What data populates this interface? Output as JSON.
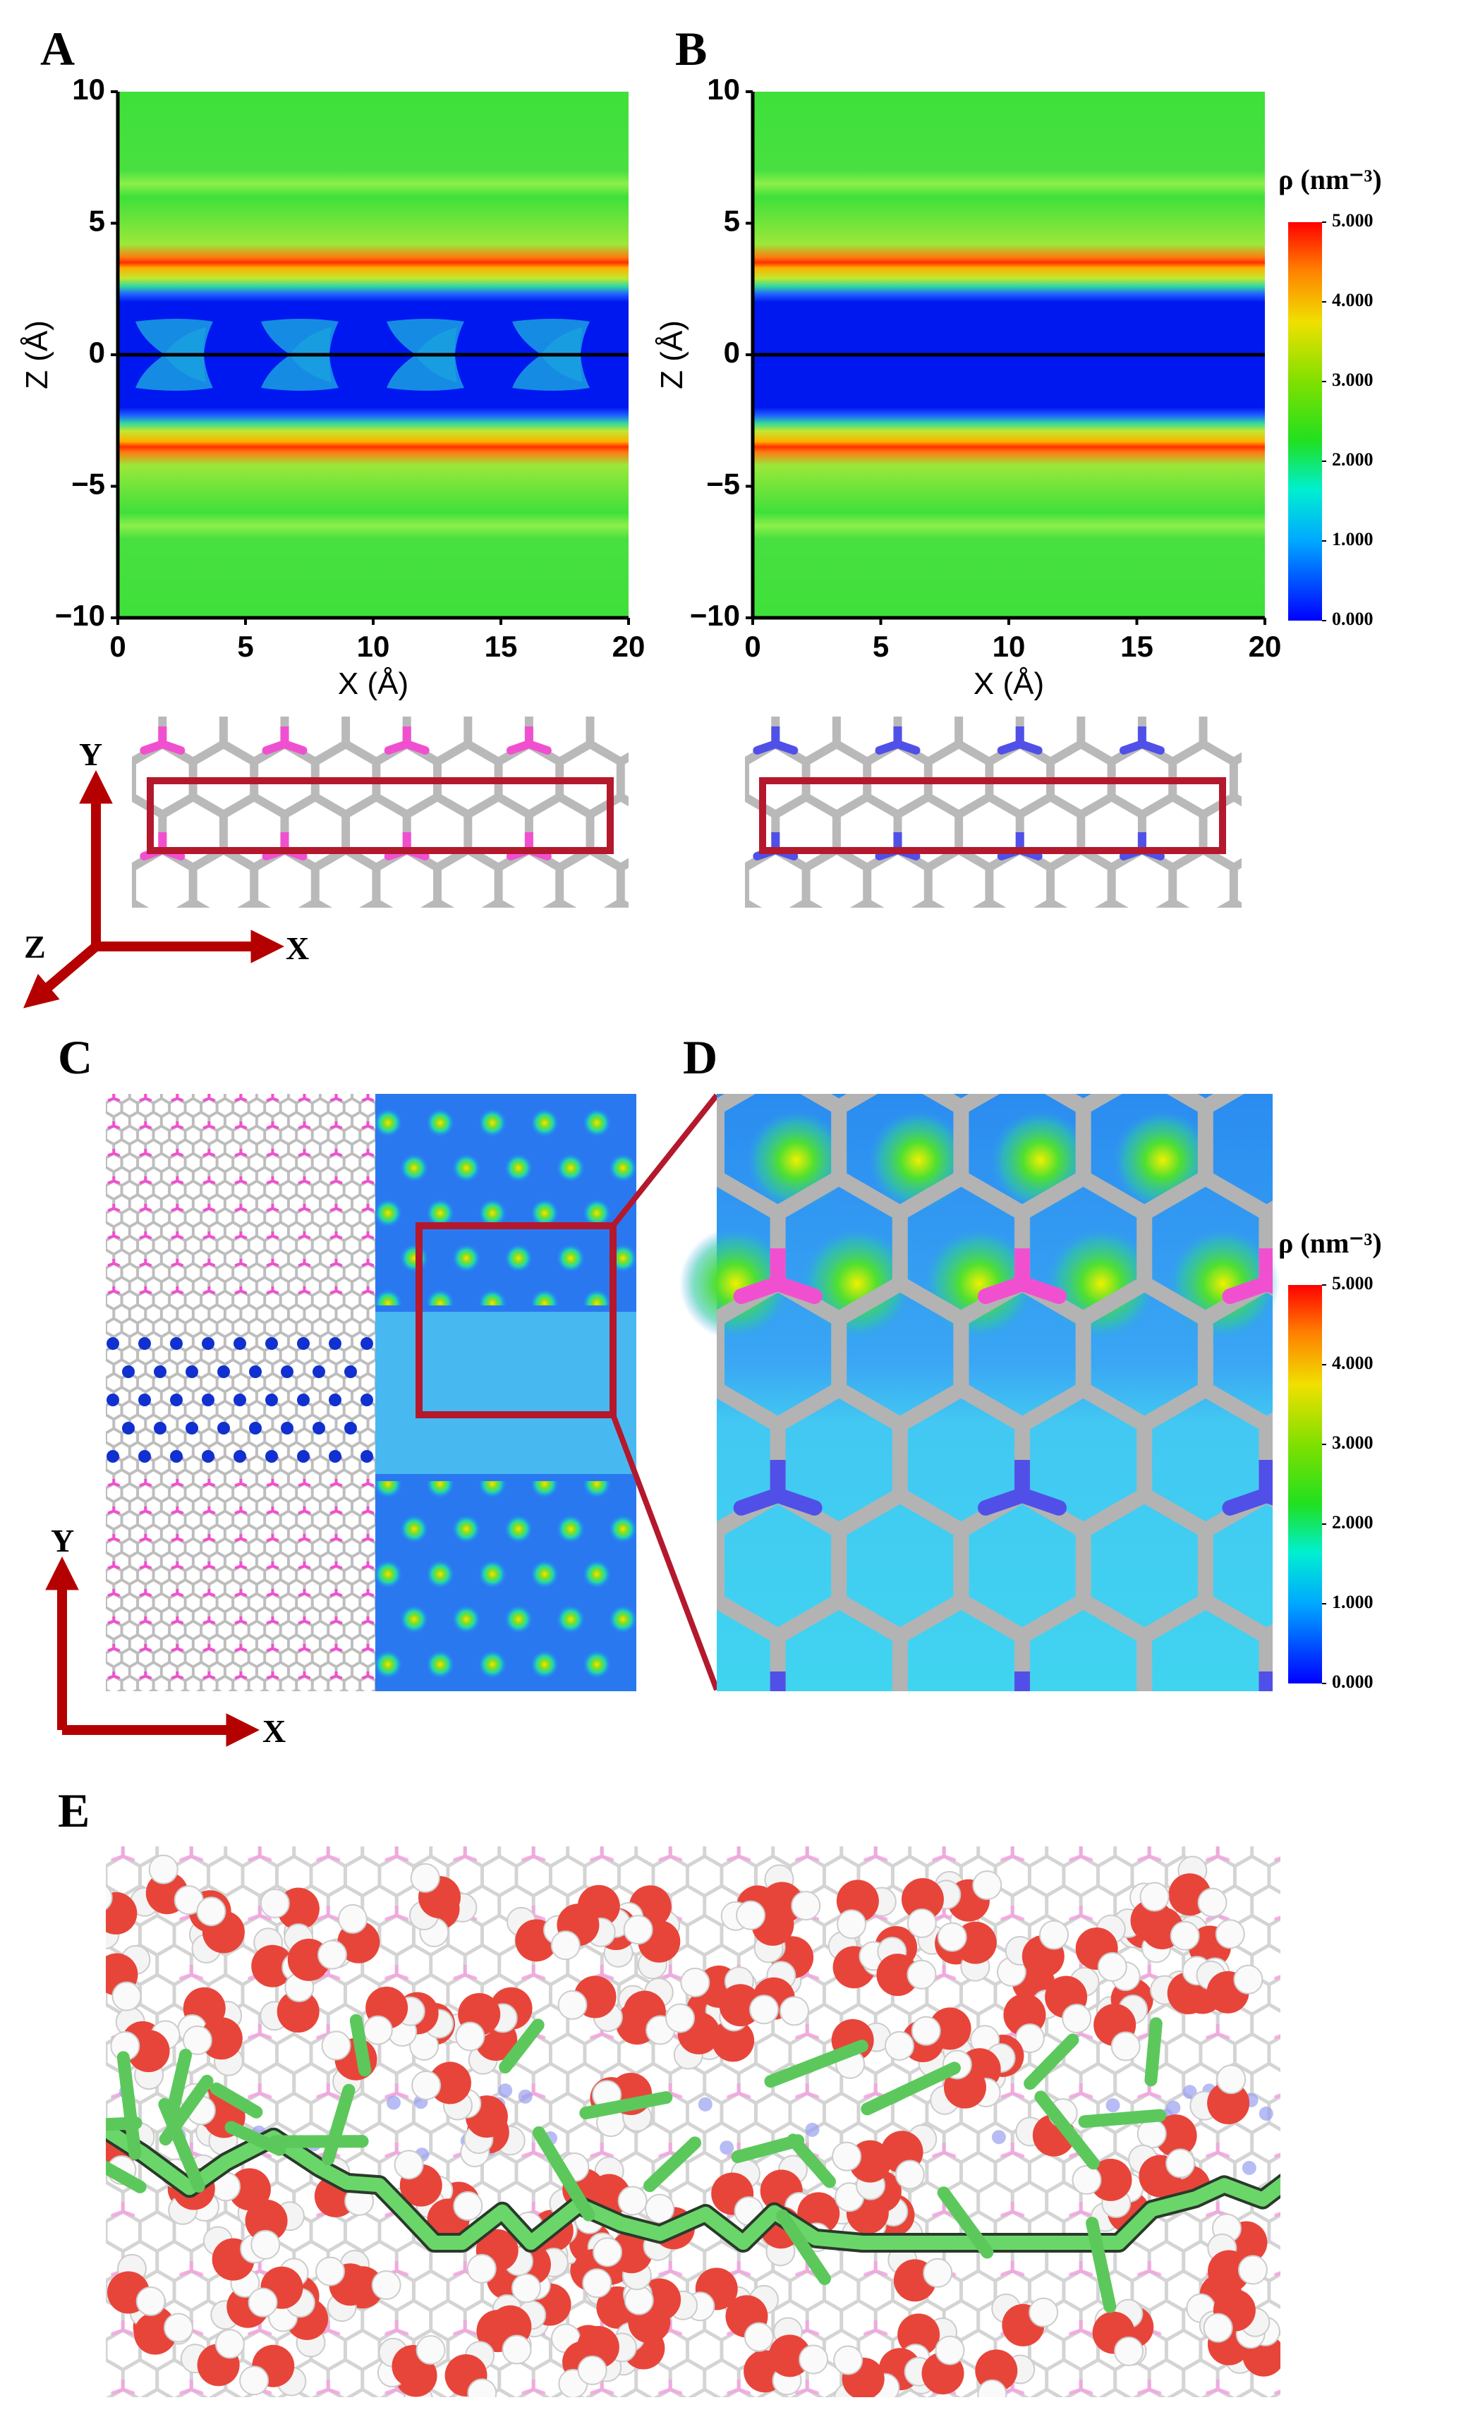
{
  "panels": {
    "A": {
      "label": "A",
      "xlabel": "X (Å)",
      "ylabel": "Z (Å)",
      "xlim": [
        0,
        20
      ],
      "ylim": [
        -10,
        10
      ],
      "xticks": [
        0,
        5,
        10,
        15,
        20
      ],
      "yticks": [
        {
          "value": -10,
          "label": "−10"
        },
        {
          "value": -5,
          "label": "−5"
        },
        0,
        5,
        10
      ]
    },
    "B": {
      "label": "B",
      "xlabel": "X (Å)",
      "ylabel": "Z (Å)",
      "xlim": [
        0,
        20
      ],
      "ylim": [
        -10,
        10
      ],
      "xticks": [
        0,
        5,
        10,
        15,
        20
      ],
      "yticks": [
        {
          "value": -10,
          "label": "−10"
        },
        {
          "value": -5,
          "label": "−5"
        },
        0,
        5,
        10
      ]
    },
    "C": {
      "label": "C"
    },
    "D": {
      "label": "D"
    },
    "E": {
      "label": "E"
    }
  },
  "colorbars": [
    {
      "title": "ρ  (nm⁻³)",
      "lim": [
        0,
        5
      ],
      "ticks": [
        {
          "value": 0,
          "label": "0.000"
        },
        {
          "value": 1,
          "label": "1.000"
        },
        {
          "value": 2,
          "label": "2.000"
        },
        {
          "value": 3,
          "label": "3.000"
        },
        {
          "value": 4,
          "label": "4.000"
        },
        {
          "value": 5,
          "label": "5.000"
        }
      ]
    },
    {
      "title": "ρ  (nm⁻³)",
      "lim": [
        0,
        5
      ],
      "ticks": [
        {
          "value": 0,
          "label": "0.000"
        },
        {
          "value": 1,
          "label": "1.000"
        },
        {
          "value": 2,
          "label": "2.000"
        },
        {
          "value": 3,
          "label": "3.000"
        },
        {
          "value": 4,
          "label": "4.000"
        },
        {
          "value": 5,
          "label": "5.000"
        }
      ]
    }
  ],
  "axes_ab": {
    "x": "X",
    "y": "Y",
    "z": "Z"
  },
  "axes_c": {
    "x": "X",
    "y": "Y"
  }
}
